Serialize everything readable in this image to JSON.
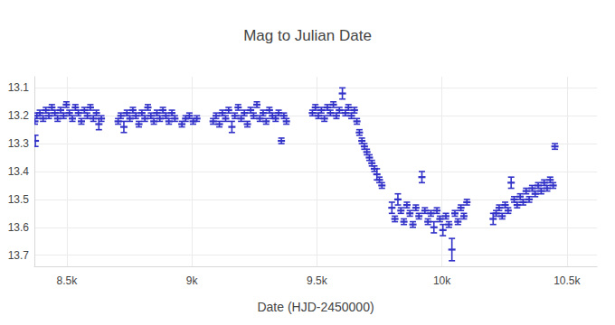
{
  "chart_data": {
    "type": "scatter",
    "title": "Mag to Julian Date",
    "x_label": "Date (HJD-2450000)",
    "color": "#3232c8",
    "grid": true,
    "xlim": [
      8370,
      10620
    ],
    "xticks": [
      {
        "value": 8500,
        "label": "8.5k"
      },
      {
        "value": 9000,
        "label": "9k"
      },
      {
        "value": 9500,
        "label": "9.5k"
      },
      {
        "value": 10000,
        "label": "10k"
      },
      {
        "value": 10500,
        "label": "10.5k"
      }
    ],
    "ylim": [
      13.74,
      13.06
    ],
    "yticks": [
      13.1,
      13.2,
      13.3,
      13.4,
      13.5,
      13.6,
      13.7
    ],
    "x": [
      8372,
      8374,
      8380,
      8392,
      8405,
      8416,
      8428,
      8440,
      8452,
      8463,
      8475,
      8487,
      8498,
      8510,
      8522,
      8534,
      8546,
      8558,
      8570,
      8582,
      8594,
      8606,
      8618,
      8628,
      8638,
      8705,
      8716,
      8728,
      8740,
      8752,
      8764,
      8776,
      8788,
      8800,
      8812,
      8824,
      8836,
      8848,
      8860,
      8872,
      8884,
      8896,
      8908,
      8920,
      8932,
      8960,
      8975,
      8990,
      9005,
      9020,
      9085,
      9097,
      9110,
      9122,
      9135,
      9147,
      9160,
      9172,
      9185,
      9197,
      9210,
      9222,
      9235,
      9247,
      9260,
      9272,
      9285,
      9297,
      9310,
      9322,
      9335,
      9347,
      9358,
      9368,
      9378,
      9482,
      9494,
      9506,
      9518,
      9530,
      9542,
      9554,
      9566,
      9578,
      9590,
      9602,
      9614,
      9626,
      9638,
      9650,
      9660,
      9670,
      9680,
      9690,
      9700,
      9710,
      9720,
      9730,
      9740,
      9750,
      9760,
      9800,
      9812,
      9824,
      9836,
      9848,
      9860,
      9872,
      9884,
      9896,
      9908,
      9920,
      9932,
      9944,
      9956,
      9968,
      9980,
      9992,
      10004,
      10016,
      10028,
      10040,
      10052,
      10064,
      10076,
      10088,
      10100,
      10205,
      10217,
      10229,
      10241,
      10253,
      10265,
      10277,
      10289,
      10301,
      10313,
      10325,
      10337,
      10349,
      10361,
      10373,
      10385,
      10397,
      10409,
      10421,
      10433,
      10445,
      10452
    ],
    "values": [
      13.22,
      13.29,
      13.2,
      13.19,
      13.21,
      13.18,
      13.2,
      13.17,
      13.19,
      13.21,
      13.18,
      13.2,
      13.16,
      13.19,
      13.21,
      13.17,
      13.19,
      13.22,
      13.18,
      13.2,
      13.17,
      13.21,
      13.19,
      13.23,
      13.21,
      13.22,
      13.2,
      13.24,
      13.19,
      13.21,
      13.18,
      13.2,
      13.23,
      13.19,
      13.21,
      13.17,
      13.2,
      13.22,
      13.19,
      13.21,
      13.18,
      13.2,
      13.22,
      13.19,
      13.21,
      13.23,
      13.21,
      13.2,
      13.22,
      13.21,
      13.22,
      13.2,
      13.23,
      13.19,
      13.21,
      13.18,
      13.24,
      13.2,
      13.17,
      13.21,
      13.19,
      13.23,
      13.18,
      13.2,
      13.16,
      13.21,
      13.19,
      13.22,
      13.18,
      13.2,
      13.21,
      13.19,
      13.29,
      13.2,
      13.22,
      13.19,
      13.17,
      13.2,
      13.18,
      13.21,
      13.17,
      13.19,
      13.16,
      13.2,
      13.18,
      13.12,
      13.19,
      13.17,
      13.2,
      13.18,
      13.22,
      13.26,
      13.29,
      13.31,
      13.33,
      13.35,
      13.37,
      13.39,
      13.41,
      13.43,
      13.45,
      13.53,
      13.57,
      13.5,
      13.54,
      13.58,
      13.52,
      13.55,
      13.59,
      13.53,
      13.56,
      13.42,
      13.54,
      13.58,
      13.55,
      13.6,
      13.54,
      13.57,
      13.61,
      13.56,
      13.59,
      13.68,
      13.55,
      13.58,
      13.53,
      13.56,
      13.51,
      13.57,
      13.55,
      13.53,
      13.56,
      13.52,
      13.54,
      13.44,
      13.5,
      13.52,
      13.49,
      13.51,
      13.47,
      13.5,
      13.46,
      13.48,
      13.45,
      13.47,
      13.44,
      13.46,
      13.43,
      13.45,
      13.31
    ],
    "errors": [
      0.01,
      0.02,
      0.01,
      0.01,
      0.01,
      0.01,
      0.01,
      0.01,
      0.01,
      0.01,
      0.01,
      0.01,
      0.01,
      0.01,
      0.01,
      0.01,
      0.01,
      0.01,
      0.01,
      0.01,
      0.01,
      0.01,
      0.01,
      0.02,
      0.01,
      0.01,
      0.01,
      0.02,
      0.01,
      0.01,
      0.01,
      0.01,
      0.01,
      0.01,
      0.01,
      0.01,
      0.01,
      0.01,
      0.01,
      0.01,
      0.01,
      0.01,
      0.01,
      0.01,
      0.01,
      0.01,
      0.01,
      0.01,
      0.01,
      0.01,
      0.01,
      0.01,
      0.01,
      0.01,
      0.01,
      0.01,
      0.02,
      0.01,
      0.01,
      0.01,
      0.01,
      0.01,
      0.01,
      0.01,
      0.01,
      0.01,
      0.01,
      0.01,
      0.01,
      0.01,
      0.01,
      0.01,
      0.01,
      0.01,
      0.01,
      0.01,
      0.01,
      0.01,
      0.01,
      0.01,
      0.01,
      0.01,
      0.01,
      0.01,
      0.01,
      0.02,
      0.01,
      0.01,
      0.01,
      0.01,
      0.01,
      0.01,
      0.01,
      0.01,
      0.01,
      0.01,
      0.01,
      0.01,
      0.02,
      0.01,
      0.01,
      0.02,
      0.01,
      0.02,
      0.01,
      0.01,
      0.01,
      0.01,
      0.01,
      0.01,
      0.01,
      0.02,
      0.01,
      0.01,
      0.01,
      0.02,
      0.01,
      0.01,
      0.02,
      0.01,
      0.01,
      0.04,
      0.01,
      0.01,
      0.01,
      0.01,
      0.01,
      0.02,
      0.01,
      0.01,
      0.01,
      0.01,
      0.01,
      0.02,
      0.01,
      0.01,
      0.01,
      0.01,
      0.01,
      0.01,
      0.01,
      0.01,
      0.01,
      0.01,
      0.01,
      0.01,
      0.01,
      0.01,
      0.01
    ]
  }
}
